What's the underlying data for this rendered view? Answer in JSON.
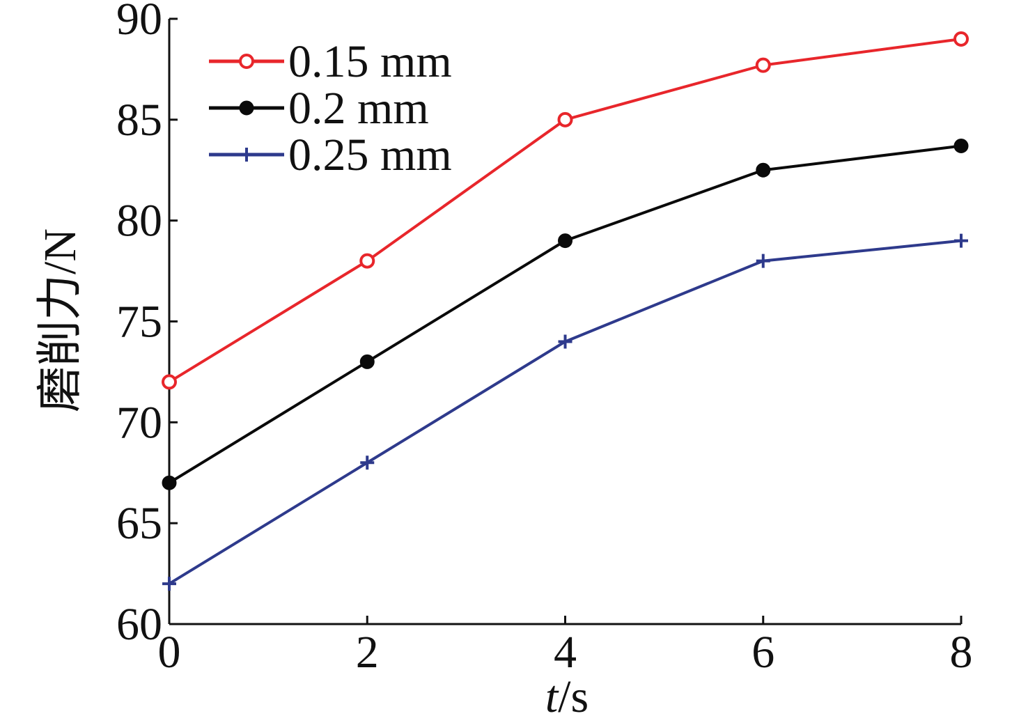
{
  "chart_data": {
    "type": "line",
    "x": [
      0,
      2,
      4,
      6,
      8
    ],
    "xlabel_italic": "t",
    "xlabel_rest": "/s",
    "ylabel": "磨削力/N",
    "xlim": [
      0,
      8
    ],
    "ylim": [
      60,
      90
    ],
    "xticks": [
      0,
      2,
      4,
      6,
      8
    ],
    "yticks": [
      60,
      65,
      70,
      75,
      80,
      85,
      90
    ],
    "grid": false,
    "legend_position": "top-left",
    "series": [
      {
        "name": "0.15 mm",
        "values": [
          72,
          78,
          85,
          87.7,
          89
        ],
        "color": "#e8262b",
        "marker": "open-circle"
      },
      {
        "name": "0.2 mm",
        "values": [
          67,
          73,
          79,
          82.5,
          83.7
        ],
        "color": "#0a0a0a",
        "marker": "filled-circle"
      },
      {
        "name": "0.25 mm",
        "values": [
          62,
          68,
          74,
          78,
          79
        ],
        "color": "#2e3a8c",
        "marker": "plus"
      }
    ]
  }
}
